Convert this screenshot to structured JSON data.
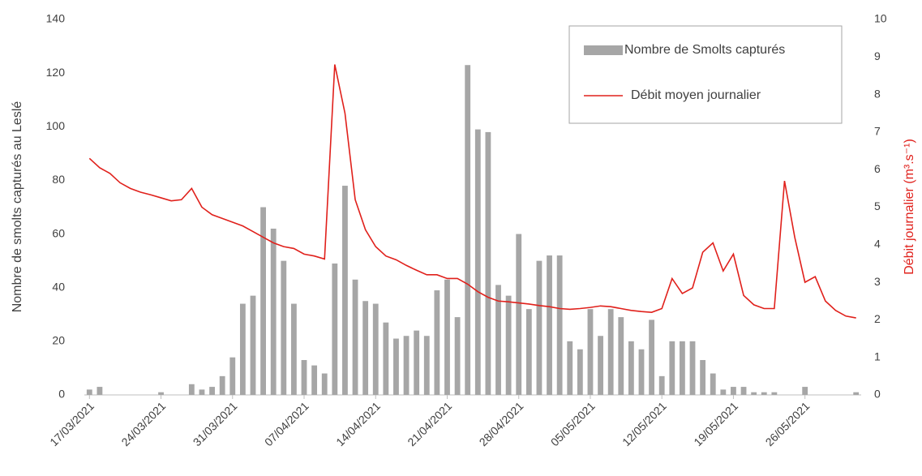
{
  "chart_data": {
    "type": "bar-line",
    "y_label": "Nombre de smolts capturés au Leslé",
    "y2_label": "Débit journalier (m³.s⁻¹)",
    "categories": [
      "17/03/2021",
      null,
      null,
      null,
      null,
      null,
      null,
      "24/03/2021",
      null,
      null,
      null,
      null,
      null,
      null,
      "31/03/2021",
      null,
      null,
      null,
      null,
      null,
      null,
      "07/04/2021",
      null,
      null,
      null,
      null,
      null,
      null,
      "14/04/2021",
      null,
      null,
      null,
      null,
      null,
      null,
      "21/04/2021",
      null,
      null,
      null,
      null,
      null,
      null,
      "28/04/2021",
      null,
      null,
      null,
      null,
      null,
      null,
      "05/05/2021",
      null,
      null,
      null,
      null,
      null,
      null,
      "12/05/2021",
      null,
      null,
      null,
      null,
      null,
      null,
      "19/05/2021",
      null,
      null,
      null,
      null,
      null,
      null,
      "26/05/2021",
      null,
      null,
      null,
      null,
      null
    ],
    "series": [
      {
        "name": "Nombre de Smolts capturés",
        "kind": "bar",
        "color": "#a6a6a6",
        "values": [
          2,
          3,
          0,
          0,
          0,
          0,
          0,
          1,
          0,
          0,
          4,
          2,
          3,
          7,
          14,
          34,
          37,
          70,
          62,
          50,
          34,
          13,
          11,
          8,
          49,
          78,
          43,
          35,
          34,
          27,
          21,
          22,
          24,
          22,
          39,
          43,
          29,
          123,
          99,
          98,
          41,
          37,
          60,
          32,
          50,
          52,
          52,
          20,
          17,
          32,
          22,
          32,
          29,
          20,
          17,
          28,
          7,
          20,
          20,
          20,
          13,
          8,
          2,
          3,
          3,
          1,
          1,
          1,
          0,
          0,
          3,
          0,
          0,
          0,
          0,
          1
        ]
      },
      {
        "name": "Débit moyen journalier",
        "kind": "line",
        "axis": "y2",
        "color": "#e0201b",
        "values": [
          6.3,
          6.05,
          5.9,
          5.65,
          5.5,
          5.4,
          5.33,
          5.25,
          5.17,
          5.2,
          5.5,
          5.0,
          4.8,
          4.7,
          4.6,
          4.5,
          4.35,
          4.2,
          4.05,
          3.95,
          3.9,
          3.75,
          3.7,
          3.62,
          8.8,
          7.5,
          5.2,
          4.4,
          3.95,
          3.7,
          3.6,
          3.45,
          3.32,
          3.2,
          3.2,
          3.1,
          3.1,
          2.95,
          2.75,
          2.6,
          2.5,
          2.48,
          2.45,
          2.42,
          2.38,
          2.35,
          2.3,
          2.28,
          2.3,
          2.33,
          2.37,
          2.35,
          2.3,
          2.25,
          2.22,
          2.2,
          2.3,
          3.1,
          2.7,
          2.85,
          3.8,
          4.05,
          3.3,
          3.75,
          2.65,
          2.4,
          2.3,
          2.3,
          5.7,
          4.2,
          3.0,
          3.15,
          2.5,
          2.25,
          2.1,
          2.05
        ]
      }
    ],
    "ylim": [
      0,
      140
    ],
    "yticks": [
      0,
      20,
      40,
      60,
      80,
      100,
      120,
      140
    ],
    "y2lim": [
      0,
      10
    ],
    "y2ticks": [
      0,
      1,
      2,
      3,
      4,
      5,
      6,
      7,
      8,
      9,
      10
    ],
    "y2_label_color": "#e0201b",
    "legend_position": "upper right"
  }
}
